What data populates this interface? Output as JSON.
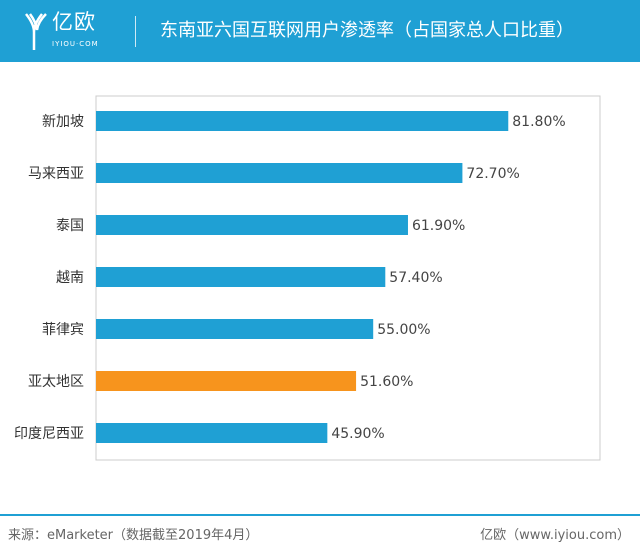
{
  "header": {
    "logo_text": "亿欧",
    "logo_sub": "IYIOU·COM",
    "title": "东南亚六国互联网用户渗透率（占国家总人口比重）"
  },
  "footer": {
    "source": "来源：eMarketer（数据截至2019年4月）",
    "credit": "亿欧（www.iyiou.com）"
  },
  "chart_data": {
    "type": "bar",
    "orientation": "horizontal",
    "categories": [
      "新加坡",
      "马来西亚",
      "泰国",
      "越南",
      "菲律宾",
      "亚太地区",
      "印度尼西亚"
    ],
    "values": [
      81.8,
      72.7,
      61.9,
      57.4,
      55.0,
      51.6,
      45.9
    ],
    "data_labels": [
      "81.80%",
      "72.70%",
      "61.90%",
      "57.40%",
      "55.00%",
      "51.60%",
      "45.90%"
    ],
    "xlim": [
      0,
      100
    ],
    "grid": false,
    "colors": {
      "default": "#1fa0d4",
      "highlight": "#f7941d"
    },
    "highlight_category": "亚太地区"
  }
}
